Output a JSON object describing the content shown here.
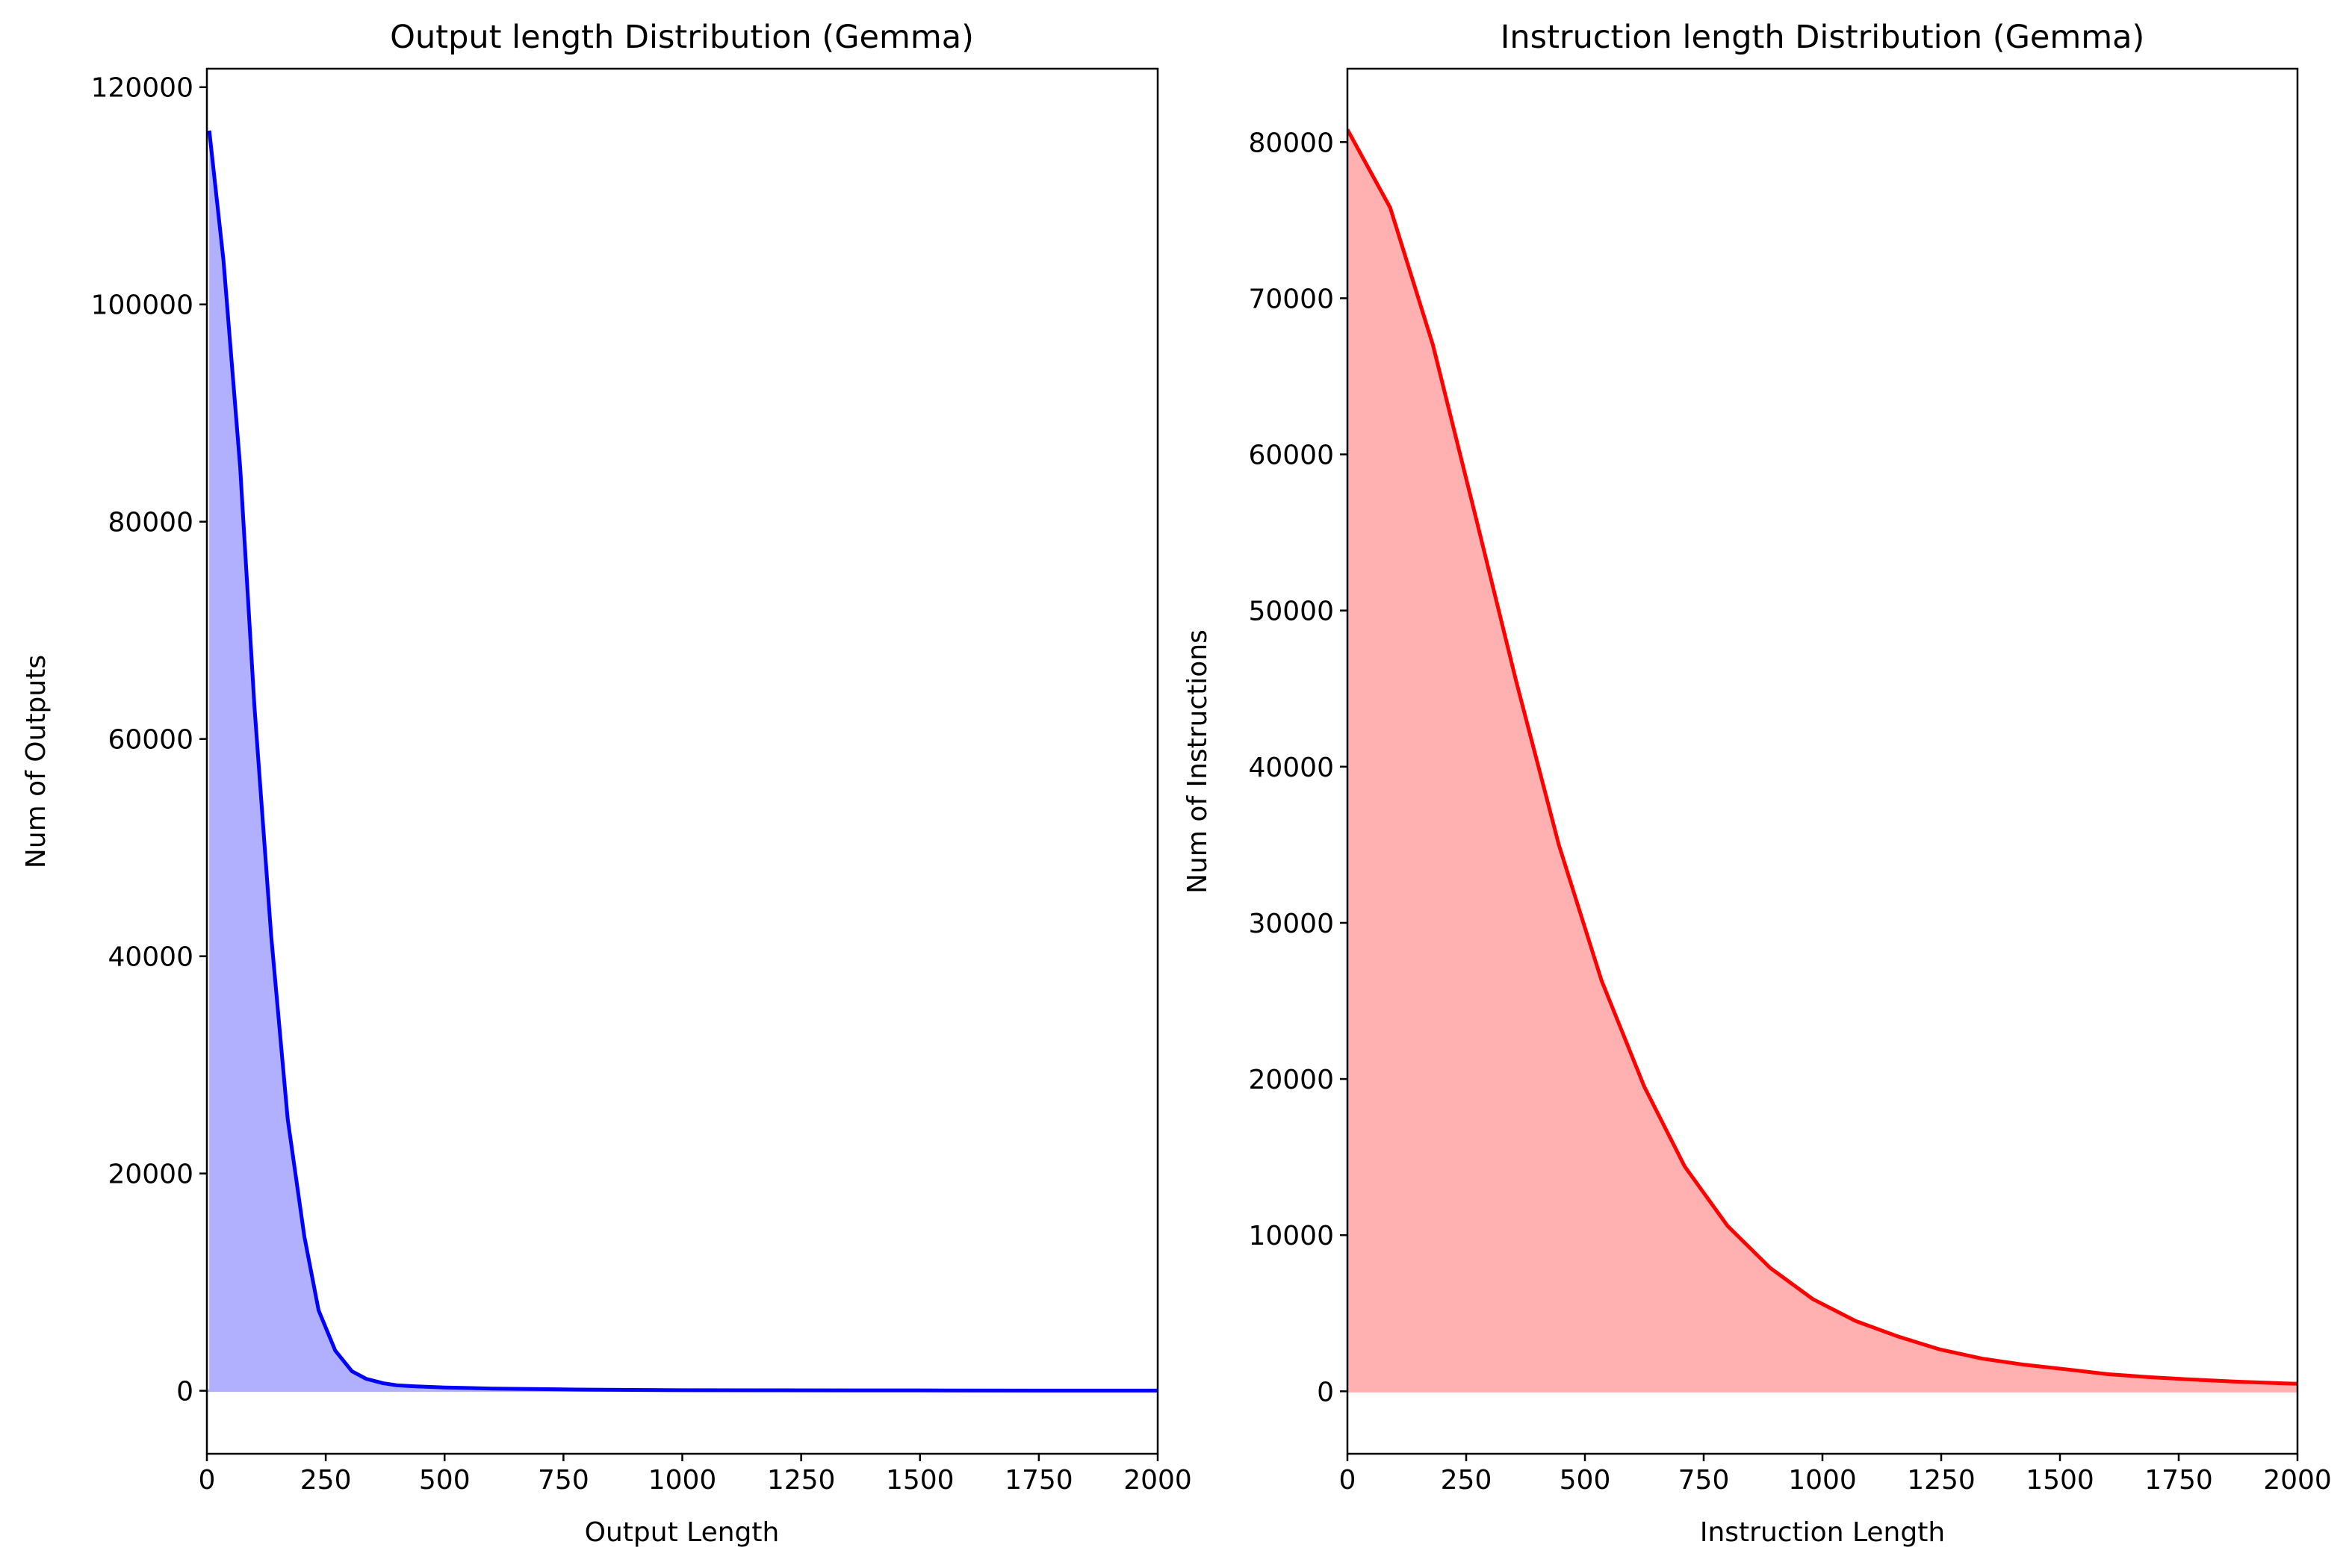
{
  "chart_data": [
    {
      "type": "area",
      "title": "Output length Distribution (Gemma)",
      "xlabel": "Output Length",
      "ylabel": "Num of Outputs",
      "xlim": [
        0,
        2000
      ],
      "ylim": [
        -5800,
        121700
      ],
      "xticks": [
        0,
        250,
        500,
        750,
        1000,
        1250,
        1500,
        1750,
        2000
      ],
      "yticks": [
        0,
        20000,
        40000,
        60000,
        80000,
        100000,
        120000
      ],
      "grid": false,
      "line_color": "#0000ff",
      "fill_color": "#b0b0ff",
      "series": [
        {
          "name": "Outputs",
          "x": [
            5,
            35,
            70,
            100,
            135,
            170,
            205,
            235,
            270,
            305,
            335,
            370,
            400,
            440,
            500,
            600,
            700,
            800,
            1000,
            1200,
            1500,
            1750,
            2000
          ],
          "values": [
            116000,
            104000,
            85000,
            63000,
            42000,
            25000,
            14200,
            7400,
            3700,
            1800,
            1100,
            700,
            500,
            400,
            300,
            200,
            150,
            100,
            50,
            40,
            30,
            20,
            15
          ]
        }
      ]
    },
    {
      "type": "area",
      "title": "Instruction length Distribution (Gemma)",
      "xlabel": "Instruction Length",
      "ylabel": "Num of Instructions",
      "xlim": [
        0,
        2000
      ],
      "ylim": [
        -4000,
        84700
      ],
      "xticks": [
        0,
        250,
        500,
        750,
        1000,
        1250,
        1500,
        1750,
        2000
      ],
      "yticks": [
        0,
        10000,
        20000,
        30000,
        40000,
        50000,
        60000,
        70000,
        80000
      ],
      "grid": false,
      "line_color": "#ff0000",
      "fill_color": "#ffb0b0",
      "series": [
        {
          "name": "Instructions",
          "x": [
            0,
            90,
            180,
            270,
            355,
            445,
            535,
            625,
            710,
            800,
            890,
            980,
            1070,
            1160,
            1245,
            1335,
            1425,
            1515,
            1600,
            1690,
            1780,
            1870,
            1960,
            2000
          ],
          "values": [
            80800,
            75800,
            67000,
            56000,
            45500,
            35000,
            26300,
            19500,
            14400,
            10600,
            7900,
            5900,
            4500,
            3500,
            2700,
            2100,
            1700,
            1400,
            1100,
            900,
            750,
            620,
            520,
            480
          ]
        }
      ]
    }
  ]
}
